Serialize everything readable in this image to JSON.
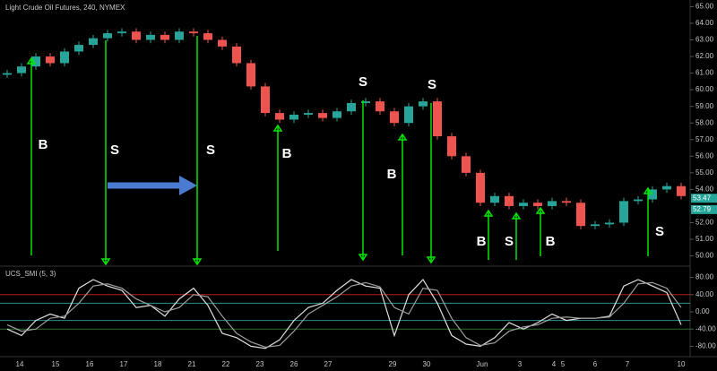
{
  "chart_data": {
    "type": "candlestick",
    "title": "Light Crude Oil Futures, 240, NYMEX",
    "up_color": "#26a69a",
    "down_color": "#ef5350",
    "x_labels": [
      "14",
      "15",
      "16",
      "17",
      "18",
      "21",
      "22",
      "23",
      "26",
      "27",
      "29",
      "30",
      "Jun",
      "3",
      "4",
      "5",
      "6",
      "7",
      "10"
    ],
    "open": [
      60.9,
      61.0,
      61.4,
      62.0,
      61.6,
      62.3,
      62.7,
      63.1,
      63.4,
      63.5,
      63.0,
      63.3,
      63.0,
      63.5,
      63.4,
      63.0,
      62.6,
      61.6,
      60.2,
      58.6,
      58.2,
      58.5,
      58.6,
      58.3,
      58.7,
      59.2,
      59.3,
      58.7,
      58.0,
      59.0,
      59.3,
      57.2,
      56.0,
      55.0,
      53.2,
      53.6,
      53.0,
      53.2,
      53.0,
      53.3,
      53.2,
      51.8,
      51.9,
      52.0,
      53.3,
      53.4,
      54.0,
      54.2
    ],
    "high": [
      61.2,
      61.6,
      62.2,
      62.2,
      62.5,
      62.9,
      63.3,
      63.6,
      63.7,
      63.7,
      63.5,
      63.5,
      63.7,
      63.7,
      63.6,
      63.2,
      62.8,
      61.8,
      60.4,
      58.8,
      58.7,
      58.8,
      58.8,
      58.9,
      59.4,
      59.5,
      59.5,
      58.9,
      59.2,
      59.5,
      59.5,
      57.4,
      56.2,
      55.2,
      53.8,
      53.8,
      53.4,
      53.4,
      53.5,
      53.5,
      53.4,
      52.1,
      52.2,
      53.5,
      53.6,
      54.2,
      54.4,
      54.4
    ],
    "low": [
      60.7,
      60.8,
      61.2,
      61.4,
      61.4,
      62.1,
      62.5,
      62.9,
      63.2,
      62.8,
      62.8,
      62.8,
      62.8,
      63.2,
      62.8,
      62.4,
      61.4,
      60.0,
      58.4,
      58.0,
      58.0,
      58.3,
      58.1,
      58.1,
      58.5,
      59.0,
      58.5,
      57.8,
      57.8,
      58.8,
      57.0,
      55.8,
      54.8,
      53.0,
      53.0,
      52.8,
      52.8,
      52.8,
      52.8,
      53.0,
      51.6,
      51.6,
      51.7,
      51.8,
      53.1,
      53.2,
      53.8,
      53.4
    ],
    "close": [
      61.0,
      61.4,
      62.0,
      61.6,
      62.3,
      62.7,
      63.1,
      63.4,
      63.5,
      63.0,
      63.3,
      63.0,
      63.5,
      63.4,
      63.0,
      62.6,
      61.6,
      60.2,
      58.6,
      58.2,
      58.5,
      58.6,
      58.3,
      58.7,
      59.2,
      59.3,
      58.7,
      58.0,
      59.0,
      59.3,
      57.2,
      56.0,
      55.0,
      53.2,
      53.6,
      53.0,
      53.2,
      53.0,
      53.3,
      53.2,
      51.8,
      51.9,
      52.0,
      53.3,
      53.4,
      54.0,
      54.2,
      53.6
    ],
    "ylim": [
      49.6,
      65.4
    ],
    "yticks": [
      {
        "value": 65,
        "label": "65.00"
      },
      {
        "value": 64,
        "label": "64.00"
      },
      {
        "value": 63,
        "label": "63.00"
      },
      {
        "value": 62,
        "label": "62.00"
      },
      {
        "value": 61,
        "label": "61.00"
      },
      {
        "value": 60,
        "label": "60.00"
      },
      {
        "value": 59,
        "label": "59.00"
      },
      {
        "value": 58,
        "label": "58.00"
      },
      {
        "value": 57,
        "label": "57.00"
      },
      {
        "value": 56,
        "label": "56.00"
      },
      {
        "value": 55,
        "label": "55.00"
      },
      {
        "value": 54,
        "label": "54.00"
      },
      {
        "value": 52,
        "label": "52.00"
      },
      {
        "value": 51,
        "label": "51.00"
      },
      {
        "value": 50,
        "label": "50.00"
      }
    ],
    "price_labels": [
      {
        "value": 53.47,
        "label": "53.47",
        "color": "#26a69a"
      },
      {
        "value": 52.79,
        "label": "52.79",
        "color": "#26a69a"
      }
    ],
    "annotations": [
      "B",
      "S",
      "S",
      "B",
      "S",
      "B",
      "S",
      "B",
      "S",
      "B",
      "S"
    ],
    "indicator": {
      "title": "UCS_SMI (5, 3)",
      "y2lim": [
        -100,
        100
      ],
      "y2ticks": [
        {
          "value": 80,
          "label": "80.00"
        },
        {
          "value": 40,
          "label": "40.00"
        },
        {
          "value": 0,
          "label": "0.00"
        },
        {
          "value": -40,
          "label": "-40.00"
        },
        {
          "value": -80,
          "label": "-80.00"
        }
      ],
      "levels": [
        {
          "value": 40,
          "color": "#b71c1c"
        },
        {
          "value": 20,
          "color": "#2f8f8f"
        },
        {
          "value": -20,
          "color": "#2f8f8f"
        },
        {
          "value": -40,
          "color": "#2e6b2e"
        }
      ],
      "series": [
        {
          "color": "#e0e0e0",
          "values": [
            -40,
            -55,
            -20,
            -5,
            -15,
            55,
            75,
            60,
            50,
            10,
            15,
            -10,
            30,
            55,
            15,
            -50,
            -60,
            -80,
            -85,
            -65,
            -20,
            10,
            20,
            50,
            75,
            60,
            55,
            -55,
            40,
            75,
            20,
            -55,
            -75,
            -80,
            -60,
            -25,
            -40,
            -25,
            -5,
            -20,
            -15,
            -15,
            -10,
            60,
            75,
            60,
            45,
            -30
          ]
        },
        {
          "color": "#9e9e9e",
          "values": [
            -30,
            -45,
            -40,
            -15,
            -10,
            20,
            60,
            65,
            55,
            30,
            15,
            0,
            10,
            40,
            35,
            -10,
            -50,
            -70,
            -82,
            -78,
            -45,
            -5,
            15,
            35,
            60,
            68,
            58,
            10,
            -5,
            55,
            50,
            -15,
            -60,
            -78,
            -72,
            -45,
            -35,
            -30,
            -15,
            -12,
            -15,
            -15,
            -12,
            20,
            65,
            68,
            55,
            10
          ]
        }
      ]
    }
  }
}
